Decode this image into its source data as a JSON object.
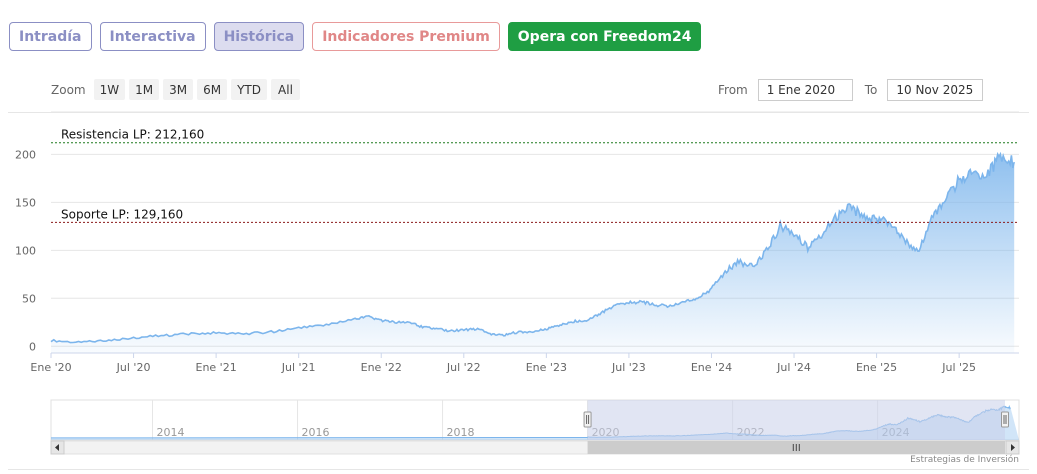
{
  "tabs": [
    {
      "label": "Intradía",
      "style": "normal"
    },
    {
      "label": "Interactiva",
      "style": "normal"
    },
    {
      "label": "Histórica",
      "style": "active"
    },
    {
      "label": "Indicadores Premium",
      "style": "premium"
    },
    {
      "label": "Opera con Freedom24",
      "style": "green"
    }
  ],
  "zoom": {
    "label": "Zoom",
    "buttons": [
      "1W",
      "1M",
      "3M",
      "6M",
      "YTD",
      "All"
    ]
  },
  "range": {
    "from_label": "From",
    "from_value": "1 Ene 2020",
    "to_label": "To",
    "to_value": "10 Nov 2025"
  },
  "credit": "Estrategias de Inversión",
  "chart_data": {
    "type": "area",
    "x_start": "2020-01",
    "x_end": "2025-11",
    "x_ticks": [
      "Ene '20",
      "Jul '20",
      "Ene '21",
      "Jul '21",
      "Ene '22",
      "Jul '22",
      "Ene '23",
      "Jul '23",
      "Ene '24",
      "Jul '24",
      "Ene '25",
      "Jul '25"
    ],
    "y_ticks": [
      0,
      50,
      100,
      150,
      200
    ],
    "ylim": [
      -7,
      215
    ],
    "series": [
      {
        "points": [
          [
            "2020-01",
            6
          ],
          [
            "2020-03",
            4
          ],
          [
            "2020-05",
            6
          ],
          [
            "2020-07",
            9
          ],
          [
            "2020-09",
            11
          ],
          [
            "2020-11",
            13
          ],
          [
            "2021-01",
            14
          ],
          [
            "2021-03",
            13
          ],
          [
            "2021-05",
            15
          ],
          [
            "2021-07",
            19
          ],
          [
            "2021-09",
            22
          ],
          [
            "2021-11",
            28
          ],
          [
            "2021-12",
            31
          ],
          [
            "2022-01",
            27
          ],
          [
            "2022-02",
            25
          ],
          [
            "2022-03",
            25
          ],
          [
            "2022-04",
            20
          ],
          [
            "2022-05",
            18
          ],
          [
            "2022-06",
            16
          ],
          [
            "2022-07",
            17
          ],
          [
            "2022-08",
            18
          ],
          [
            "2022-09",
            13
          ],
          [
            "2022-10",
            12
          ],
          [
            "2022-11",
            15
          ],
          [
            "2022-12",
            15
          ],
          [
            "2023-01",
            18
          ],
          [
            "2023-02",
            22
          ],
          [
            "2023-03",
            26
          ],
          [
            "2023-04",
            27
          ],
          [
            "2023-05",
            35
          ],
          [
            "2023-06",
            42
          ],
          [
            "2023-07",
            46
          ],
          [
            "2023-08",
            46
          ],
          [
            "2023-09",
            43
          ],
          [
            "2023-10",
            42
          ],
          [
            "2023-11",
            47
          ],
          [
            "2023-12",
            49
          ],
          [
            "2024-01",
            60
          ],
          [
            "2024-02",
            78
          ],
          [
            "2024-03",
            88
          ],
          [
            "2024-04",
            83
          ],
          [
            "2024-05",
            100
          ],
          [
            "2024-06",
            125
          ],
          [
            "2024-07",
            117
          ],
          [
            "2024-08",
            103
          ],
          [
            "2024-09",
            117
          ],
          [
            "2024-10",
            133
          ],
          [
            "2024-11",
            144
          ],
          [
            "2024-12",
            137
          ],
          [
            "2025-01",
            132
          ],
          [
            "2025-02",
            130
          ],
          [
            "2025-03",
            112
          ],
          [
            "2025-04",
            98
          ],
          [
            "2025-05",
            133
          ],
          [
            "2025-06",
            153
          ],
          [
            "2025-07",
            173
          ],
          [
            "2025-08",
            181
          ],
          [
            "2025-09",
            178
          ],
          [
            "2025-10",
            198
          ],
          [
            "2025-11",
            192
          ]
        ]
      }
    ],
    "lines": [
      {
        "label": "Resistencia LP: 212,160",
        "value": 212.16,
        "color": "#1f7a1f"
      },
      {
        "label": "Soporte LP: 129,160",
        "value": 129.16,
        "color": "#8b1a1a"
      }
    ],
    "navigator": {
      "year_labels": [
        "2014",
        "2016",
        "2018",
        "2020",
        "2022",
        "2024"
      ]
    },
    "colors": {
      "line": "#7cb5ec",
      "fill_top": "#7cb5ec",
      "navigator_mask": "#c9cfea"
    }
  }
}
